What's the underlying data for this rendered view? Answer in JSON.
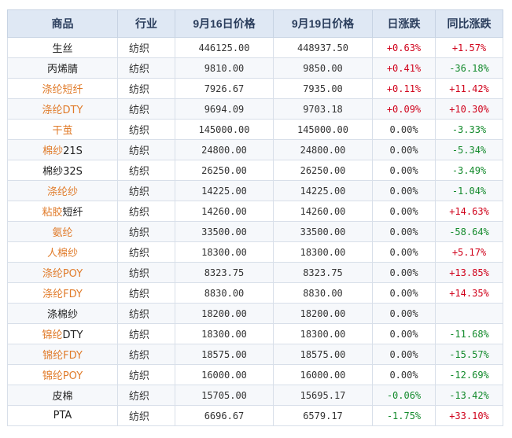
{
  "table": {
    "headers": [
      "商品",
      "行业",
      "9月16日价格",
      "9月19日价格",
      "日涨跌",
      "同比涨跌"
    ],
    "rows": [
      {
        "name": "生丝",
        "name_parts": [
          {
            "text": "生丝",
            "link": false
          }
        ],
        "industry": "纺织",
        "p1": "446125.00",
        "p2": "448937.50",
        "day": "+0.63%",
        "yoy": "+1.57%"
      },
      {
        "name": "丙烯腈",
        "name_parts": [
          {
            "text": "丙烯腈",
            "link": false
          }
        ],
        "industry": "纺织",
        "p1": "9810.00",
        "p2": "9850.00",
        "day": "+0.41%",
        "yoy": "-36.18%"
      },
      {
        "name": "涤纶短纤",
        "name_parts": [
          {
            "text": "涤纶短纤",
            "link": true
          }
        ],
        "industry": "纺织",
        "p1": "7926.67",
        "p2": "7935.00",
        "day": "+0.11%",
        "yoy": "+11.42%"
      },
      {
        "name": "涤纶DTY",
        "name_parts": [
          {
            "text": "涤纶DTY",
            "link": true
          }
        ],
        "industry": "纺织",
        "p1": "9694.09",
        "p2": "9703.18",
        "day": "+0.09%",
        "yoy": "+10.30%"
      },
      {
        "name": "干茧",
        "name_parts": [
          {
            "text": "干茧",
            "link": true
          }
        ],
        "industry": "纺织",
        "p1": "145000.00",
        "p2": "145000.00",
        "day": "0.00%",
        "yoy": "-3.33%"
      },
      {
        "name": "棉纱21S",
        "name_parts": [
          {
            "text": "棉纱",
            "link": true
          },
          {
            "text": "21S",
            "link": false
          }
        ],
        "industry": "纺织",
        "p1": "24800.00",
        "p2": "24800.00",
        "day": "0.00%",
        "yoy": "-5.34%"
      },
      {
        "name": "棉纱32S",
        "name_parts": [
          {
            "text": "棉纱32S",
            "link": false
          }
        ],
        "industry": "纺织",
        "p1": "26250.00",
        "p2": "26250.00",
        "day": "0.00%",
        "yoy": "-3.49%"
      },
      {
        "name": "涤纶纱",
        "name_parts": [
          {
            "text": "涤纶纱",
            "link": true
          }
        ],
        "industry": "纺织",
        "p1": "14225.00",
        "p2": "14225.00",
        "day": "0.00%",
        "yoy": "-1.04%"
      },
      {
        "name": "粘胶短纤",
        "name_parts": [
          {
            "text": "粘胶",
            "link": true
          },
          {
            "text": "短纤",
            "link": false
          }
        ],
        "industry": "纺织",
        "p1": "14260.00",
        "p2": "14260.00",
        "day": "0.00%",
        "yoy": "+14.63%"
      },
      {
        "name": "氨纶",
        "name_parts": [
          {
            "text": "氨纶",
            "link": true
          }
        ],
        "industry": "纺织",
        "p1": "33500.00",
        "p2": "33500.00",
        "day": "0.00%",
        "yoy": "-58.64%"
      },
      {
        "name": "人棉纱",
        "name_parts": [
          {
            "text": "人棉纱",
            "link": true
          }
        ],
        "industry": "纺织",
        "p1": "18300.00",
        "p2": "18300.00",
        "day": "0.00%",
        "yoy": "+5.17%"
      },
      {
        "name": "涤纶POY",
        "name_parts": [
          {
            "text": "涤纶POY",
            "link": true
          }
        ],
        "industry": "纺织",
        "p1": "8323.75",
        "p2": "8323.75",
        "day": "0.00%",
        "yoy": "+13.85%"
      },
      {
        "name": "涤纶FDY",
        "name_parts": [
          {
            "text": "涤纶FDY",
            "link": true
          }
        ],
        "industry": "纺织",
        "p1": "8830.00",
        "p2": "8830.00",
        "day": "0.00%",
        "yoy": "+14.35%"
      },
      {
        "name": "涤棉纱",
        "name_parts": [
          {
            "text": "涤棉纱",
            "link": false
          }
        ],
        "industry": "纺织",
        "p1": "18200.00",
        "p2": "18200.00",
        "day": "0.00%",
        "yoy": ""
      },
      {
        "name": "锦纶DTY",
        "name_parts": [
          {
            "text": "锦纶",
            "link": true
          },
          {
            "text": "DTY",
            "link": false
          }
        ],
        "industry": "纺织",
        "p1": "18300.00",
        "p2": "18300.00",
        "day": "0.00%",
        "yoy": "-11.68%"
      },
      {
        "name": "锦纶FDY",
        "name_parts": [
          {
            "text": "锦纶FDY",
            "link": true
          }
        ],
        "industry": "纺织",
        "p1": "18575.00",
        "p2": "18575.00",
        "day": "0.00%",
        "yoy": "-15.57%"
      },
      {
        "name": "锦纶POY",
        "name_parts": [
          {
            "text": "锦纶POY",
            "link": true
          }
        ],
        "industry": "纺织",
        "p1": "16000.00",
        "p2": "16000.00",
        "day": "0.00%",
        "yoy": "-12.69%"
      },
      {
        "name": "皮棉",
        "name_parts": [
          {
            "text": "皮棉",
            "link": false
          }
        ],
        "industry": "纺织",
        "p1": "15705.00",
        "p2": "15695.17",
        "day": "-0.06%",
        "yoy": "-13.42%"
      },
      {
        "name": "PTA",
        "name_parts": [
          {
            "text": "PTA",
            "link": false
          }
        ],
        "industry": "纺织",
        "p1": "6696.67",
        "p2": "6579.17",
        "day": "-1.75%",
        "yoy": "+33.10%"
      }
    ]
  },
  "colors": {
    "link": "#e07b2a",
    "up": "#d0021b",
    "down": "#138a2c",
    "header_bg": "#dfe8f4"
  }
}
